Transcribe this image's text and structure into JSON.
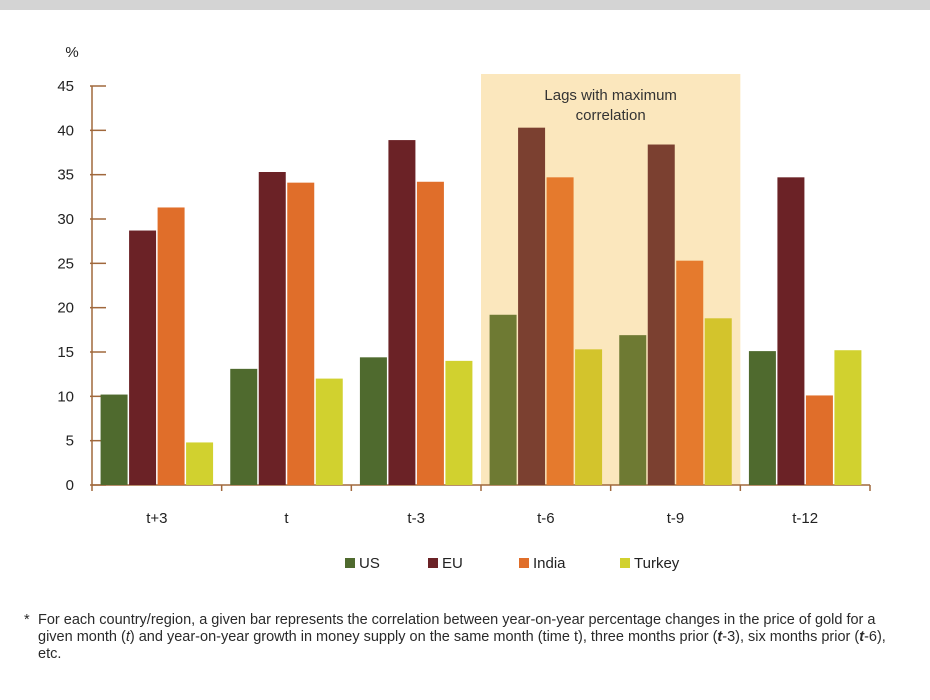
{
  "chart_data": {
    "type": "bar",
    "ylabel": "%",
    "ylim": [
      0,
      45
    ],
    "yticks": [
      0,
      5,
      10,
      15,
      20,
      25,
      30,
      35,
      40,
      45
    ],
    "categories": [
      "t+3",
      "t",
      "t-3",
      "t-6",
      "t-9",
      "t-12"
    ],
    "series": [
      {
        "name": "US",
        "color": "#4f6a2e",
        "values": [
          10.2,
          13.1,
          14.4,
          19.2,
          16.9,
          15.1
        ]
      },
      {
        "name": "EU",
        "color": "#6b2226",
        "values": [
          28.7,
          35.3,
          38.9,
          40.3,
          38.4,
          34.7
        ]
      },
      {
        "name": "India",
        "color": "#e06e2a",
        "values": [
          31.3,
          34.1,
          34.2,
          34.7,
          25.3,
          10.1
        ]
      },
      {
        "name": "Turkey",
        "color": "#d1d12f",
        "values": [
          4.8,
          12.0,
          14.0,
          15.3,
          18.8,
          15.2
        ]
      }
    ],
    "highlight": {
      "categories": [
        "t-6",
        "t-9"
      ],
      "label_line1": "Lags with maximum",
      "label_line2": "correlation",
      "color": "#fbe7bd"
    },
    "legend_position": "bottom",
    "axis_color": "#a0683c"
  },
  "footnote": {
    "star": "*",
    "text_parts": [
      {
        "t": "For each country/region, a given bar represents the correlation between year-on-year percentage changes in the price of gold for a given month (",
        "s": ""
      },
      {
        "t": "t",
        "s": "i"
      },
      {
        "t": ") and year-on-year growth in money supply on the same month (time t), three months prior (",
        "s": ""
      },
      {
        "t": "t",
        "s": "bi"
      },
      {
        "t": "-3), six months prior (",
        "s": ""
      },
      {
        "t": "t",
        "s": "bi"
      },
      {
        "t": "-6), etc.",
        "s": ""
      }
    ]
  }
}
